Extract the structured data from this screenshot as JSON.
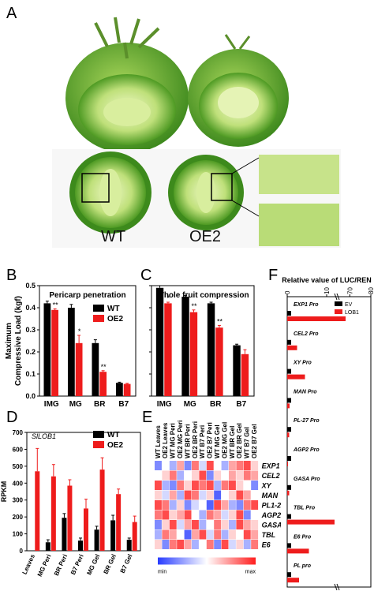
{
  "panels": {
    "a": "A",
    "b": "B",
    "c": "C",
    "d": "D",
    "e": "E",
    "f": "F"
  },
  "photo": {
    "label_wt": "WT",
    "label_oe2": "OE2"
  },
  "colors": {
    "wt": "#000000",
    "oe2": "#ee1c1c",
    "ev": "#000000",
    "lob1": "#ee1c1c"
  },
  "chart_data": [
    {
      "panel": "B",
      "type": "bar",
      "title": "Pericarp penetration",
      "ylabel_line1": "Maximum",
      "ylabel_line2": "Compressive Load (kgf)",
      "categories": [
        "IMG",
        "MG",
        "BR",
        "B7"
      ],
      "ylim": [
        0,
        0.5
      ],
      "yticks": [
        "0.0",
        "0.1",
        "0.2",
        "0.3",
        "0.4",
        "0.5"
      ],
      "legend_position": "top-right",
      "series": [
        {
          "name": "WT",
          "values": [
            0.42,
            0.4,
            0.24,
            0.06
          ],
          "errors": [
            0.01,
            0.015,
            0.015,
            0.003
          ]
        },
        {
          "name": "OE2",
          "values": [
            0.39,
            0.24,
            0.11,
            0.055
          ],
          "errors": [
            0.005,
            0.035,
            0.005,
            0.003
          ]
        }
      ],
      "annotations": [
        "**",
        "*",
        "**",
        ""
      ]
    },
    {
      "panel": "C",
      "type": "bar",
      "title": "Whole fruit compression",
      "categories": [
        "IMG",
        "MG",
        "BR",
        "B7"
      ],
      "ylim": [
        0,
        0.5
      ],
      "yticks": [
        "0.0",
        "0.1",
        "0.2",
        "0.3",
        "0.4",
        "0.5"
      ],
      "series": [
        {
          "name": "WT",
          "values": [
            0.49,
            0.45,
            0.42,
            0.23
          ],
          "errors": [
            0.01,
            0.005,
            0.005,
            0.005
          ]
        },
        {
          "name": "OE2",
          "values": [
            0.42,
            0.38,
            0.31,
            0.19
          ],
          "errors": [
            0.005,
            0.01,
            0.01,
            0.02
          ]
        }
      ],
      "annotations": [
        "*",
        "**",
        "**",
        ""
      ]
    },
    {
      "panel": "D",
      "type": "bar",
      "title": "SlLOB1",
      "ylabel": "RPKM",
      "categories": [
        "Leaves",
        "MG Peri",
        "BR Peri",
        "B7 Peri",
        "MG Gel",
        "BR Gel",
        "B7 Gel"
      ],
      "ylim": [
        0,
        700
      ],
      "yticks": [
        "0",
        "100",
        "200",
        "300",
        "400",
        "500",
        "600",
        "700"
      ],
      "legend_position": "top-right",
      "series": [
        {
          "name": "WT",
          "values": [
            0,
            50,
            195,
            60,
            125,
            180,
            65
          ],
          "errors": [
            0,
            15,
            25,
            15,
            20,
            30,
            10
          ]
        },
        {
          "name": "OE2",
          "values": [
            470,
            440,
            385,
            250,
            480,
            335,
            170
          ],
          "errors": [
            135,
            70,
            35,
            55,
            70,
            30,
            35
          ]
        }
      ]
    },
    {
      "panel": "E",
      "type": "heatmap",
      "columns": [
        "WT Leaves",
        "OE2 Leaves",
        "WT MG Peri",
        "OE2 MG Peri",
        "WT BR Peri",
        "OE2 BR Peri",
        "WT B7 Peri",
        "OE2 B7 Peri",
        "WT MG Gel",
        "OE2 MG Gel",
        "WT BR Gel",
        "OE2 BR Gel",
        "WT B7 Gel",
        "OE2 B7 Gel"
      ],
      "rows": [
        "EXP1",
        "CEL2",
        "XY",
        "MAN",
        "PL1-2.",
        "AGP2",
        "GASA",
        "TBL",
        "E6"
      ],
      "scale_min": "min",
      "scale_max": "max",
      "values": [
        [
          0.2,
          0.5,
          0.3,
          0.7,
          0.2,
          0.8,
          0.4,
          0.9,
          0.5,
          0.3,
          0.7,
          0.8,
          0.9,
          0.6
        ],
        [
          0.5,
          0.6,
          0.8,
          0.3,
          0.5,
          0.6,
          0.9,
          0.2,
          0.6,
          0.5,
          0.7,
          0.6,
          0.8,
          0.7
        ],
        [
          0.9,
          0.3,
          0.2,
          0.8,
          0.6,
          0.9,
          0.8,
          0.9,
          0.3,
          0.8,
          0.9,
          0.6,
          0.5,
          0.2
        ],
        [
          0.6,
          0.4,
          0.7,
          0.3,
          0.9,
          0.8,
          0.4,
          0.6,
          0.1,
          0.5,
          0.6,
          0.9,
          0.7,
          0.5
        ],
        [
          0.9,
          0.8,
          0.3,
          0.6,
          0.2,
          0.4,
          0.5,
          0.1,
          0.9,
          0.7,
          0.3,
          0.2,
          0.8,
          0.9
        ],
        [
          0.8,
          0.9,
          0.6,
          0.7,
          0.9,
          0.5,
          0.3,
          0.8,
          0.7,
          0.4,
          0.6,
          0.9,
          0.2,
          0.5
        ],
        [
          0.2,
          0.6,
          0.9,
          0.4,
          0.7,
          0.9,
          0.3,
          0.5,
          0.8,
          0.6,
          0.3,
          0.9,
          0.7,
          0.6
        ],
        [
          0.3,
          0.8,
          0.7,
          0.5,
          0.1,
          0.7,
          0.9,
          0.4,
          0.8,
          0.3,
          0.6,
          0.5,
          0.9,
          0.7
        ],
        [
          0.6,
          0.2,
          0.8,
          0.9,
          0.7,
          0.3,
          0.5,
          0.8,
          0.2,
          0.9,
          0.4,
          0.6,
          0.3,
          0.8
        ]
      ]
    },
    {
      "panel": "F",
      "type": "bar",
      "orientation": "horizontal",
      "title": "Relative value of LUC/REN",
      "xticks": [
        "0",
        "10",
        "70",
        "80"
      ],
      "legend_position": "top-right",
      "categories": [
        "EXP1 Pro",
        "CEL2 Pro",
        "XY Pro",
        "MAN Pro",
        "PL-27 Pro",
        "AGP2 Pro",
        "GASA Pro",
        "TBL Pro",
        "E6 Pro",
        "PL pro"
      ],
      "series": [
        {
          "name": "EV",
          "values": [
            1,
            1,
            1,
            1,
            1,
            1,
            1,
            1,
            1,
            1
          ]
        },
        {
          "name": "LOB1",
          "values": [
            68,
            2.5,
            4.5,
            0.6,
            0.5,
            17,
            0.5,
            12,
            5.5,
            3
          ]
        }
      ]
    }
  ]
}
